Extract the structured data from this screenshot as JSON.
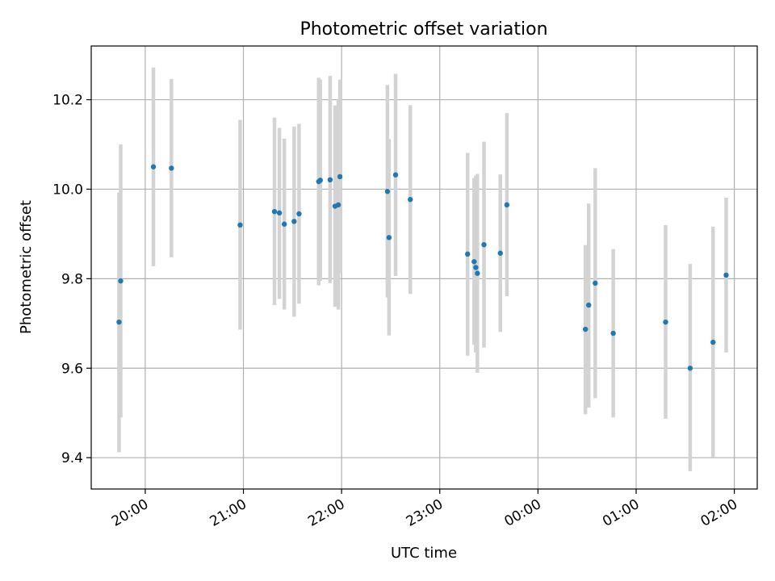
{
  "chart_data": {
    "type": "scatter",
    "title": "Photometric offset variation",
    "xlabel": "UTC time",
    "ylabel": "Photometric offset",
    "x_unit": "UTC",
    "x_tick_labels": [
      "20:00",
      "21:00",
      "22:00",
      "23:00",
      "00:00",
      "01:00",
      "02:00"
    ],
    "x_tick_times": [
      "20:00",
      "21:00",
      "22:00",
      "23:00",
      "24:00",
      "25:00",
      "26:00"
    ],
    "xlim": [
      "19:27",
      "26:14"
    ],
    "y_ticks": [
      9.4,
      9.6,
      9.8,
      10.0,
      10.2
    ],
    "ylim": [
      9.33,
      10.32
    ],
    "grid": true,
    "colors": {
      "point": "#1f77b4",
      "error_bar": "#d3d3d3",
      "grid": "#b0b0b0"
    },
    "points": [
      {
        "t": "19:44",
        "y": 9.703,
        "lo": 9.412,
        "hi": 9.993
      },
      {
        "t": "19:45",
        "y": 9.795,
        "lo": 9.49,
        "hi": 10.1
      },
      {
        "t": "20:05",
        "y": 10.05,
        "lo": 9.828,
        "hi": 10.272
      },
      {
        "t": "20:16",
        "y": 10.047,
        "lo": 9.848,
        "hi": 10.246
      },
      {
        "t": "20:58",
        "y": 9.92,
        "lo": 9.686,
        "hi": 10.155
      },
      {
        "t": "21:19",
        "y": 9.95,
        "lo": 9.741,
        "hi": 10.16
      },
      {
        "t": "21:22",
        "y": 9.947,
        "lo": 9.755,
        "hi": 10.137
      },
      {
        "t": "21:25",
        "y": 9.922,
        "lo": 9.731,
        "hi": 10.113
      },
      {
        "t": "21:31",
        "y": 9.928,
        "lo": 9.715,
        "hi": 10.14
      },
      {
        "t": "21:34",
        "y": 9.945,
        "lo": 9.744,
        "hi": 10.146
      },
      {
        "t": "21:46",
        "y": 10.017,
        "lo": 9.785,
        "hi": 10.249
      },
      {
        "t": "21:47",
        "y": 10.02,
        "lo": 9.795,
        "hi": 10.245
      },
      {
        "t": "21:53",
        "y": 10.021,
        "lo": 9.79,
        "hi": 10.253
      },
      {
        "t": "21:56",
        "y": 9.962,
        "lo": 9.737,
        "hi": 10.187
      },
      {
        "t": "21:58",
        "y": 9.965,
        "lo": 9.731,
        "hi": 10.2
      },
      {
        "t": "21:59",
        "y": 10.028,
        "lo": 9.812,
        "hi": 10.245
      },
      {
        "t": "22:28",
        "y": 9.995,
        "lo": 9.758,
        "hi": 10.233
      },
      {
        "t": "22:29",
        "y": 9.892,
        "lo": 9.673,
        "hi": 10.112
      },
      {
        "t": "22:33",
        "y": 10.032,
        "lo": 9.806,
        "hi": 10.258
      },
      {
        "t": "22:42",
        "y": 9.977,
        "lo": 9.766,
        "hi": 10.188
      },
      {
        "t": "23:17",
        "y": 9.855,
        "lo": 9.628,
        "hi": 10.081
      },
      {
        "t": "23:21",
        "y": 9.838,
        "lo": 9.652,
        "hi": 10.025
      },
      {
        "t": "23:22",
        "y": 9.825,
        "lo": 9.635,
        "hi": 10.03
      },
      {
        "t": "23:23",
        "y": 9.812,
        "lo": 9.59,
        "hi": 10.034
      },
      {
        "t": "23:27",
        "y": 9.876,
        "lo": 9.646,
        "hi": 10.106
      },
      {
        "t": "23:37",
        "y": 9.857,
        "lo": 9.681,
        "hi": 10.033
      },
      {
        "t": "23:41",
        "y": 9.965,
        "lo": 9.761,
        "hi": 10.17
      },
      {
        "t": "24:29",
        "y": 9.687,
        "lo": 9.497,
        "hi": 9.875
      },
      {
        "t": "24:31",
        "y": 9.741,
        "lo": 9.512,
        "hi": 9.968
      },
      {
        "t": "24:35",
        "y": 9.79,
        "lo": 9.533,
        "hi": 10.047
      },
      {
        "t": "24:46",
        "y": 9.678,
        "lo": 9.49,
        "hi": 9.866
      },
      {
        "t": "25:18",
        "y": 9.703,
        "lo": 9.487,
        "hi": 9.92
      },
      {
        "t": "25:33",
        "y": 9.6,
        "lo": 9.37,
        "hi": 9.833
      },
      {
        "t": "25:47",
        "y": 9.658,
        "lo": 9.4,
        "hi": 9.916
      },
      {
        "t": "25:55",
        "y": 9.808,
        "lo": 9.635,
        "hi": 9.981
      }
    ]
  }
}
